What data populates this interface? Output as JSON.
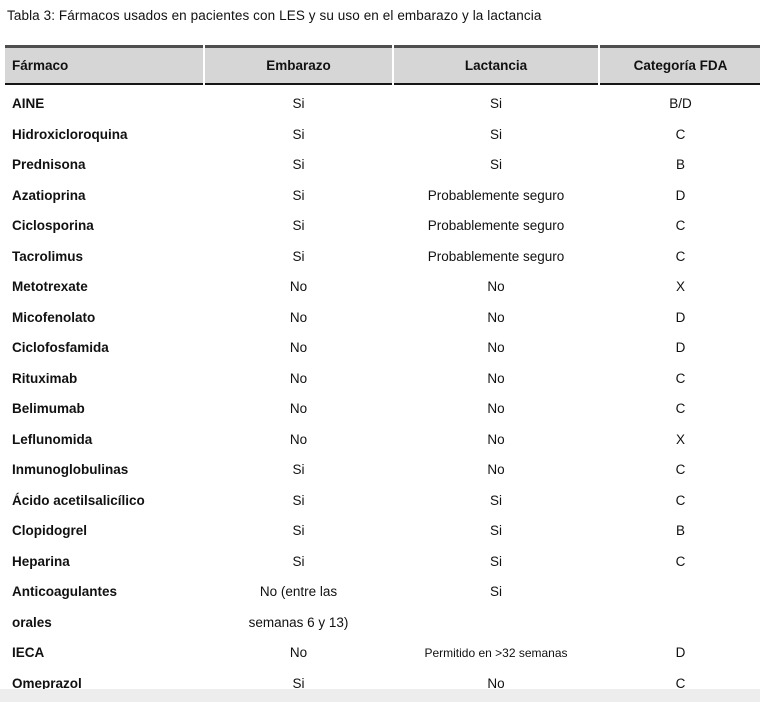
{
  "title": "Tabla 3: Fármacos usados en pacientes con LES y su uso en el embarazo y la lactancia",
  "table": {
    "columns": [
      "Fármaco",
      "Embarazo",
      "Lactancia",
      "Categoría FDA"
    ],
    "rows": [
      {
        "farmaco": "AINE",
        "embarazo": "Si",
        "lactancia": "Si",
        "fda": "B/D"
      },
      {
        "farmaco": "Hidroxicloroquina",
        "embarazo": "Si",
        "lactancia": "Si",
        "fda": "C"
      },
      {
        "farmaco": "Prednisona",
        "embarazo": "Si",
        "lactancia": "Si",
        "fda": "B"
      },
      {
        "farmaco": "Azatioprina",
        "embarazo": "Si",
        "lactancia": "Probablemente seguro",
        "fda": "D"
      },
      {
        "farmaco": "Ciclosporina",
        "embarazo": "Si",
        "lactancia": "Probablemente seguro",
        "fda": "C"
      },
      {
        "farmaco": "Tacrolimus",
        "embarazo": "Si",
        "lactancia": "Probablemente seguro",
        "fda": "C"
      },
      {
        "farmaco": "Metotrexate",
        "embarazo": "No",
        "lactancia": "No",
        "fda": "X"
      },
      {
        "farmaco": "Micofenolato",
        "embarazo": "No",
        "lactancia": "No",
        "fda": "D"
      },
      {
        "farmaco": "Ciclofosfamida",
        "embarazo": "No",
        "lactancia": "No",
        "fda": "D"
      },
      {
        "farmaco": "Rituximab",
        "embarazo": "No",
        "lactancia": "No",
        "fda": "C"
      },
      {
        "farmaco": "Belimumab",
        "embarazo": "No",
        "lactancia": "No",
        "fda": "C"
      },
      {
        "farmaco": "Leflunomida",
        "embarazo": "No",
        "lactancia": "No",
        "fda": "X"
      },
      {
        "farmaco": "Inmunoglobulinas",
        "embarazo": "Si",
        "lactancia": "No",
        "fda": "C"
      },
      {
        "farmaco": "Ácido acetilsalicílico",
        "embarazo": "Si",
        "lactancia": "Si",
        "fda": "C"
      },
      {
        "farmaco": "Clopidogrel",
        "embarazo": "Si",
        "lactancia": "Si",
        "fda": "B"
      },
      {
        "farmaco": "Heparina",
        "embarazo": "Si",
        "lactancia": "Si",
        "fda": "C"
      },
      {
        "farmaco": "Anticoagulantes\norales",
        "embarazo": "No (entre las\nsemanas 6 y 13)",
        "lactancia": "Si",
        "fda": ""
      },
      {
        "farmaco": "IECA",
        "embarazo": "No",
        "lactancia": "Permitido en >32 semanas",
        "fda": "D",
        "lactancia_small": true
      },
      {
        "farmaco": "Omeprazol",
        "embarazo": "Si",
        "lactancia": "No",
        "fda": "C"
      }
    ]
  },
  "colors": {
    "header_bg": "#d6d6d6",
    "border_top": "#4e4e4e",
    "header_rule": "#161616",
    "bottom_rule": "#8a8a8a",
    "text": "#111111"
  }
}
